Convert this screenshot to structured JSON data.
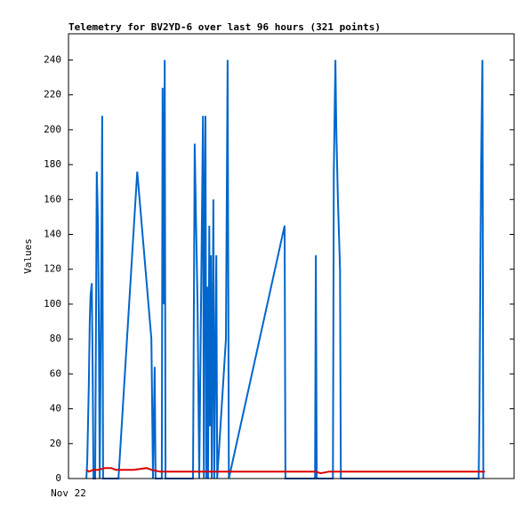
{
  "chart_data": {
    "type": "line",
    "title": "Telemetry for BV2YD-6 over last 96 hours (321 points)",
    "y_label": "Values",
    "xlim": [
      0,
      107
    ],
    "xticks": [
      {
        "value": 0,
        "label": "Nov 22"
      }
    ],
    "ylim": [
      0,
      255
    ],
    "yticks": [
      0,
      20,
      40,
      60,
      80,
      100,
      120,
      140,
      160,
      180,
      200,
      220,
      240
    ],
    "series": [
      {
        "color": "#0066cc",
        "x": [
          4.3,
          4.5,
          4.9,
          5.1,
          5.3,
          5.6,
          5.8,
          6.0,
          6.4,
          6.8,
          7.1,
          7.3,
          7.5,
          7.9,
          8.1,
          8.3,
          12.0,
          16.5,
          19.9,
          20.3,
          20.7,
          20.9,
          22.4,
          22.6,
          22.9,
          23.1,
          23.3,
          29.9,
          30.3,
          30.6,
          31.0,
          31.4,
          32.3,
          32.5,
          32.7,
          32.9,
          33.1,
          33.3,
          33.5,
          33.8,
          34.0,
          34.2,
          34.4,
          34.6,
          34.8,
          35.0,
          35.5,
          35.7,
          37.8,
          38.2,
          38.5,
          51.9,
          52.1,
          59.2,
          59.4,
          59.6,
          63.5,
          63.7,
          64.1,
          64.3,
          64.7,
          65.2,
          65.4,
          98.5,
          98.7,
          98.9,
          99.1,
          99.4,
          99.6
        ],
        "values": [
          0,
          10,
          55,
          90,
          105,
          112,
          60,
          0,
          0,
          176,
          145,
          80,
          0,
          128,
          208,
          0,
          0,
          176,
          80,
          0,
          64,
          0,
          0,
          224,
          100,
          240,
          0,
          0,
          192,
          150,
          100,
          0,
          208,
          0,
          160,
          208,
          0,
          110,
          0,
          145,
          30,
          128,
          0,
          80,
          160,
          0,
          128,
          0,
          80,
          240,
          0,
          145,
          0,
          0,
          128,
          0,
          0,
          176,
          240,
          200,
          160,
          120,
          0,
          0,
          40,
          120,
          180,
          240,
          0
        ]
      },
      {
        "color": "#dd0000",
        "x": [
          4.3,
          4.9,
          6.0,
          7.1,
          8.8,
          10.3,
          11.3,
          15.6,
          18.8,
          19.9,
          22.0,
          37.0,
          59.4,
          60.5,
          62.6,
          100.0
        ],
        "values": [
          5,
          4,
          5,
          5,
          6,
          6,
          5,
          5,
          6,
          5,
          4,
          4,
          4,
          3,
          4,
          4
        ]
      }
    ]
  }
}
